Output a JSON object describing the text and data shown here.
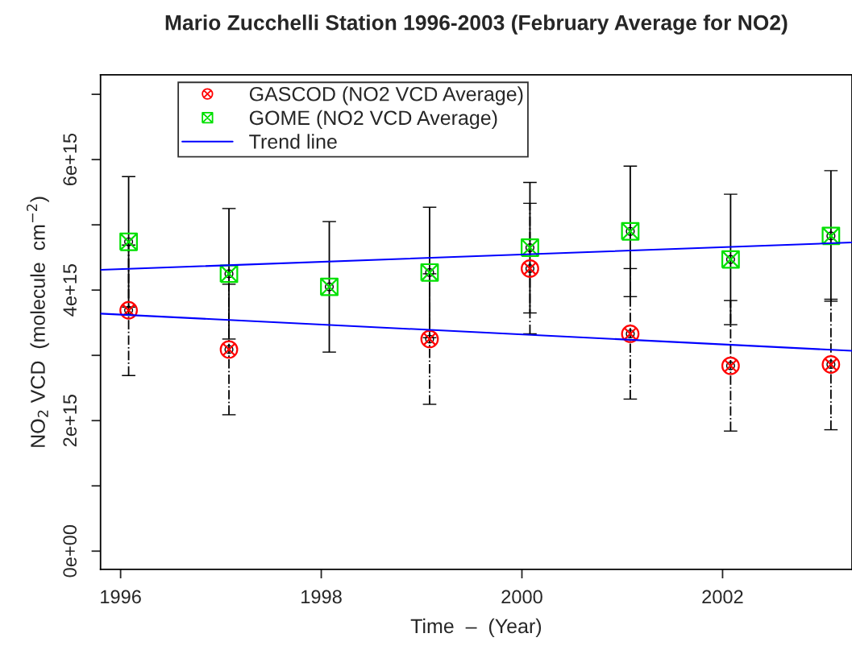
{
  "chart_data": {
    "type": "scatter",
    "title": "Mario Zucchelli Station 1996-2003 (February Average for NO2)",
    "xlabel": "Time  –  (Year)",
    "ylabel": "NO$_{2}$ VCD  (molecule  cm$^{−2}$)",
    "series": [
      {
        "name": "GASCOD (NO2 VCD Average)",
        "color": "#ff0000",
        "marker": "circle",
        "line_style": "dotted",
        "x": [
          1996.08,
          1997.08,
          1999.08,
          2000.08,
          2001.08,
          2002.08,
          2003.08
        ],
        "values": [
          3690000000000000.0,
          3090000000000000.0,
          3250000000000000.0,
          4330000000000000.0,
          3330000000000000.0,
          2840000000000000.0,
          2860000000000000.0
        ],
        "errors": [
          1000000000000000.0,
          1000000000000000.0,
          1000000000000000.0,
          1000000000000000.0,
          1000000000000000.0,
          1000000000000000.0,
          1000000000000000.0
        ]
      },
      {
        "name": "GOME (NO2 VCD Average)",
        "color": "#00e000",
        "marker": "square",
        "line_style": "solid",
        "x": [
          1996.08,
          1997.08,
          1998.08,
          1999.08,
          2000.08,
          2001.08,
          2002.08,
          2003.08
        ],
        "values": [
          4740000000000000.0,
          4250000000000000.0,
          4050000000000000.0,
          4270000000000000.0,
          4650000000000000.0,
          4900000000000000.0,
          4470000000000000.0,
          4830000000000000.0
        ],
        "errors": [
          1000000000000000.0,
          1000000000000000.0,
          1000000000000000.0,
          1000000000000000.0,
          1000000000000000.0,
          1000000000000000.0,
          1000000000000000.0,
          1000000000000000.0
        ]
      },
      {
        "name": "Trend line",
        "type": "line",
        "color": "#0000ff",
        "x": [
          1995.8,
          2003.29
        ],
        "values": [
          4310000000000000.0,
          4730000000000000.0
        ]
      },
      {
        "type": "line",
        "color": "#0000ff",
        "x": [
          1995.8,
          2003.29
        ],
        "values": [
          3640000000000000.0,
          3070000000000000.0
        ]
      }
    ],
    "xlim": [
      1995.8,
      2003.29
    ],
    "xticks": [
      1996,
      1998,
      2000,
      2002
    ],
    "ylim": [
      -280000000000000.0,
      7300000000000000.0
    ],
    "yticks": [
      {
        "value": 0,
        "label": "0e+00"
      },
      {
        "value": 1000000000000000.0,
        "label": null
      },
      {
        "value": 2000000000000000.0,
        "label": "2e+15"
      },
      {
        "value": 3000000000000000.0,
        "label": null
      },
      {
        "value": 4000000000000000.0,
        "label": "4e+15"
      },
      {
        "value": 5000000000000000.0,
        "label": null
      },
      {
        "value": 6000000000000000.0,
        "label": "6e+15"
      },
      {
        "value": 7000000000000000.0,
        "label": null
      }
    ],
    "grid": false,
    "legend": "top left"
  }
}
